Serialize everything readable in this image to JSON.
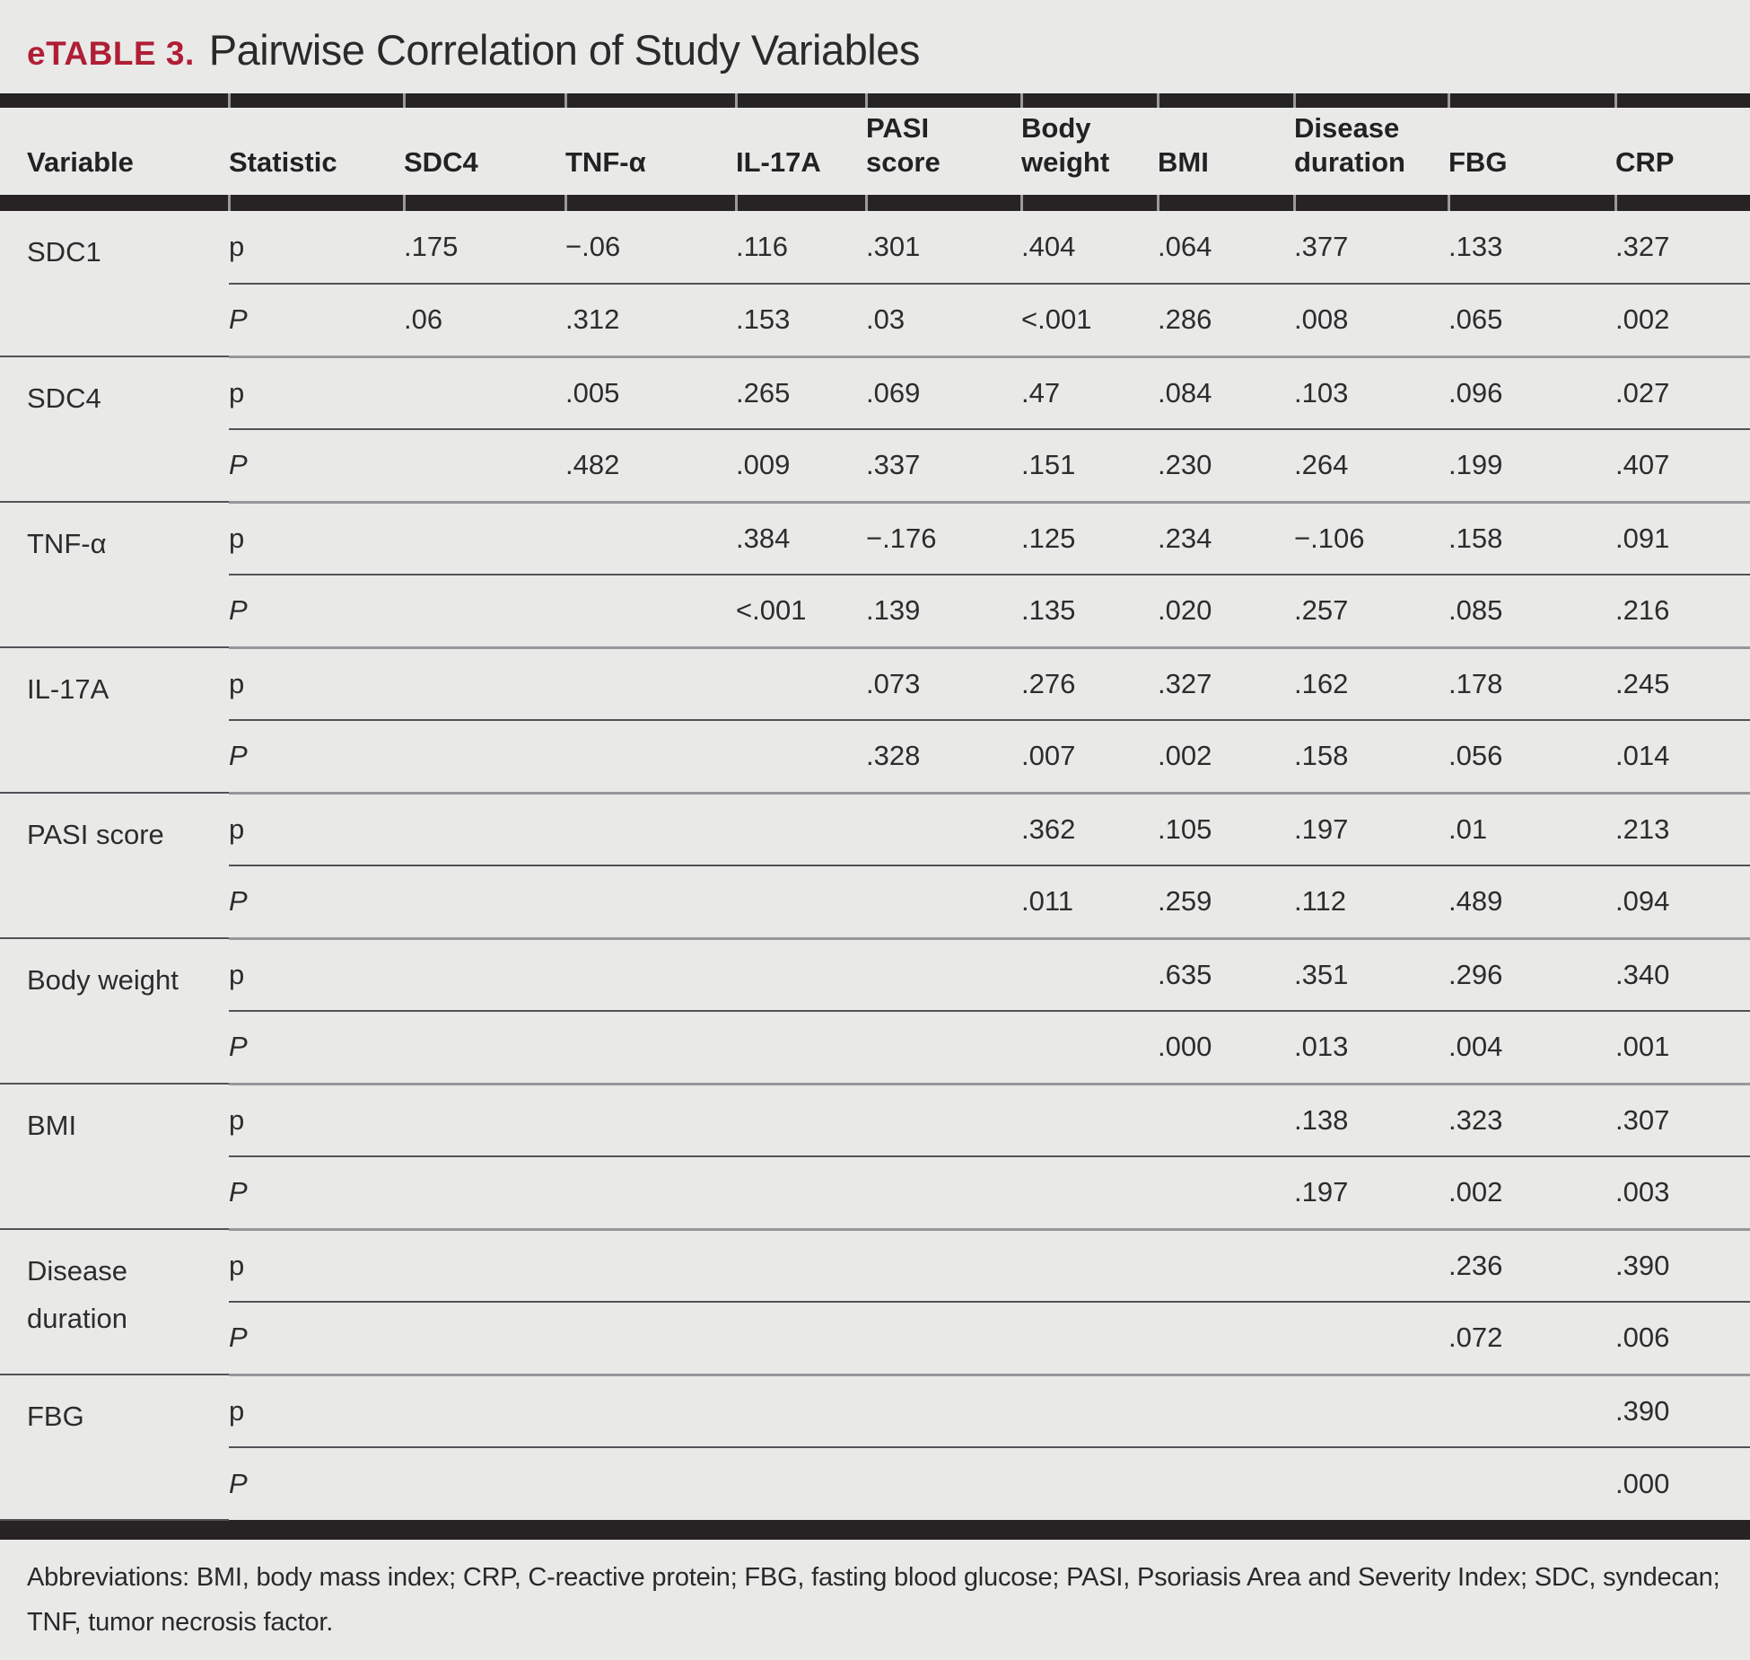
{
  "title": {
    "label": "eTABLE 3.",
    "text": "Pairwise Correlation of Study Variables"
  },
  "colors": {
    "accent_red": "#b01e35",
    "rule_black": "#272324",
    "page_background": "#e9eae8"
  },
  "table": {
    "columns": [
      "Variable",
      "Statistic",
      "SDC4",
      "TNF-α",
      "IL-17A",
      "PASI score",
      "Body weight",
      "BMI",
      "Disease duration",
      "FBG",
      "CRP"
    ],
    "statistic_labels": {
      "coefficient": "p",
      "p_value": "P"
    },
    "rows": [
      {
        "variable": "SDC1",
        "coefficient": [
          ".175",
          "−.06",
          ".116",
          ".301",
          ".404",
          ".064",
          ".377",
          ".133",
          ".327"
        ],
        "p_value": [
          ".06",
          ".312",
          ".153",
          ".03",
          "<.001",
          ".286",
          ".008",
          ".065",
          ".002"
        ]
      },
      {
        "variable": "SDC4",
        "coefficient": [
          "",
          ".005",
          ".265",
          ".069",
          ".47",
          ".084",
          ".103",
          ".096",
          ".027"
        ],
        "p_value": [
          "",
          ".482",
          ".009",
          ".337",
          ".151",
          ".230",
          ".264",
          ".199",
          ".407"
        ]
      },
      {
        "variable": "TNF-α",
        "coefficient": [
          "",
          "",
          ".384",
          "−.176",
          ".125",
          ".234",
          "−.106",
          ".158",
          ".091"
        ],
        "p_value": [
          "",
          "",
          "<.001",
          ".139",
          ".135",
          ".020",
          ".257",
          ".085",
          ".216"
        ]
      },
      {
        "variable": "IL-17A",
        "coefficient": [
          "",
          "",
          "",
          ".073",
          ".276",
          ".327",
          ".162",
          ".178",
          ".245"
        ],
        "p_value": [
          "",
          "",
          "",
          ".328",
          ".007",
          ".002",
          ".158",
          ".056",
          ".014"
        ]
      },
      {
        "variable": "PASI score",
        "coefficient": [
          "",
          "",
          "",
          "",
          ".362",
          ".105",
          ".197",
          ".01",
          ".213"
        ],
        "p_value": [
          "",
          "",
          "",
          "",
          ".011",
          ".259",
          ".112",
          ".489",
          ".094"
        ]
      },
      {
        "variable": "Body weight",
        "coefficient": [
          "",
          "",
          "",
          "",
          "",
          ".635",
          ".351",
          ".296",
          ".340"
        ],
        "p_value": [
          "",
          "",
          "",
          "",
          "",
          ".000",
          ".013",
          ".004",
          ".001"
        ]
      },
      {
        "variable": "BMI",
        "coefficient": [
          "",
          "",
          "",
          "",
          "",
          "",
          ".138",
          ".323",
          ".307"
        ],
        "p_value": [
          "",
          "",
          "",
          "",
          "",
          "",
          ".197",
          ".002",
          ".003"
        ]
      },
      {
        "variable": "Disease duration",
        "coefficient": [
          "",
          "",
          "",
          "",
          "",
          "",
          "",
          ".236",
          ".390"
        ],
        "p_value": [
          "",
          "",
          "",
          "",
          "",
          "",
          "",
          ".072",
          ".006"
        ]
      },
      {
        "variable": "FBG",
        "coefficient": [
          "",
          "",
          "",
          "",
          "",
          "",
          "",
          "",
          ".390"
        ],
        "p_value": [
          "",
          "",
          "",
          "",
          "",
          "",
          "",
          "",
          ".000"
        ]
      }
    ]
  },
  "footnote": "Abbreviations: BMI, body mass index; CRP, C-reactive protein; FBG, fasting blood glucose; PASI, Psoriasis Area and Severity Index; SDC, syndecan; TNF, tumor necrosis factor."
}
